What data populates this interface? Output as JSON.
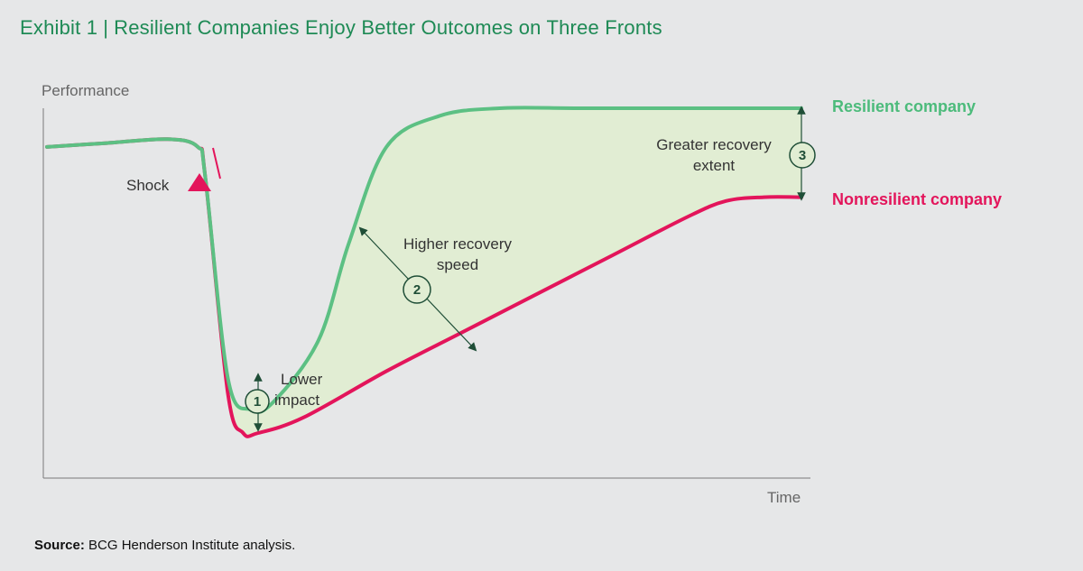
{
  "header": {
    "exhibit": "Exhibit 1",
    "separator": "|",
    "title": "Resilient Companies Enjoy Better Outcomes on Three Fronts"
  },
  "footer": {
    "source_label": "Source:",
    "source_text": "BCG Henderson Institute analysis."
  },
  "colors": {
    "resilient": "#5cc083",
    "nonresilient": "#e3155b",
    "fill": "#e1edd3",
    "title": "#1e8a55",
    "marker": "#1f4e37"
  },
  "chart_data": {
    "type": "line",
    "title": "Resilient Companies Enjoy Better Outcomes on Three Fronts",
    "xlabel": "Time",
    "ylabel": "Performance",
    "grid": false,
    "legend": "right",
    "series": [
      {
        "name": "Resilient company",
        "x": [
          0,
          8,
          16,
          20,
          21,
          24,
          27,
          30,
          36,
          40,
          45,
          52,
          60,
          70,
          80,
          90,
          100
        ],
        "y": [
          100,
          101,
          102,
          100,
          92,
          40,
          32,
          34,
          50,
          75,
          100,
          108,
          110,
          110,
          110,
          110,
          110
        ]
      },
      {
        "name": "Nonresilient company",
        "x": [
          0,
          8,
          16,
          20,
          21,
          24,
          26,
          28,
          34,
          45,
          55,
          65,
          75,
          85,
          90,
          95,
          100
        ],
        "y": [
          100,
          101,
          102,
          100,
          92,
          36,
          26,
          26,
          30,
          42,
          52,
          62,
          72,
          82,
          86,
          87,
          87
        ]
      }
    ],
    "annotations": [
      {
        "label": "Shock",
        "marker": "triangle"
      },
      {
        "number": "1",
        "label_line1": "Lower",
        "label_line2": "impact"
      },
      {
        "number": "2",
        "label_line1": "Higher recovery",
        "label_line2": "speed"
      },
      {
        "number": "3",
        "label_line1": "Greater recovery",
        "label_line2": "extent"
      }
    ]
  }
}
